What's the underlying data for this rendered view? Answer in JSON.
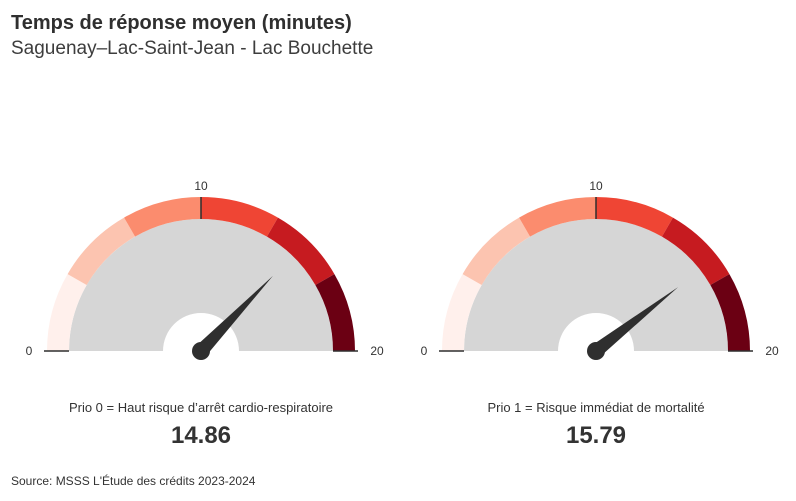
{
  "header": {
    "title": "Temps de réponse moyen (minutes)",
    "subtitle": "Saguenay–Lac-Saint-Jean - Lac Bouchette"
  },
  "source": "Source: MSSS L'Étude des crédits 2023-2024",
  "colors": {
    "band_bg": "#d6d6d6",
    "needle": "#2f2f2f",
    "bands": [
      "#fff0ec",
      "#fcc4b0",
      "#fb8c6e",
      "#ef4534",
      "#c61b20",
      "#6b0013"
    ]
  },
  "chart_data": [
    {
      "type": "gauge",
      "min": 0,
      "max": 20,
      "ticks": [
        "0",
        "10",
        "20"
      ],
      "band_breaks": [
        0,
        3.33,
        6.67,
        10,
        13.33,
        16.67,
        20
      ],
      "caption": "Prio 0 = Haut risque d’arrêt cardio-respiratoire",
      "value": 14.86,
      "value_label": "14.86"
    },
    {
      "type": "gauge",
      "min": 0,
      "max": 20,
      "ticks": [
        "0",
        "10",
        "20"
      ],
      "band_breaks": [
        0,
        3.33,
        6.67,
        10,
        13.33,
        16.67,
        20
      ],
      "caption": "Prio 1 = Risque immédiat de mortalité",
      "value": 15.79,
      "value_label": "15.79"
    }
  ]
}
